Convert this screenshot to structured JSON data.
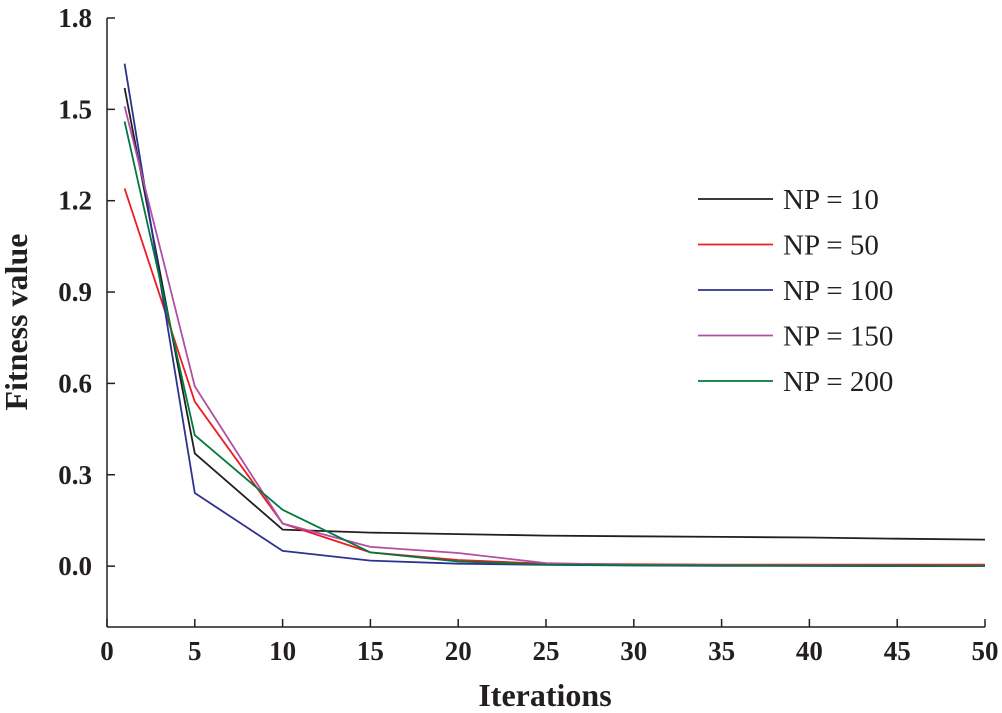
{
  "chart_data": {
    "type": "line",
    "title": "",
    "xlabel": "Iterations",
    "ylabel": "Fitness value",
    "xlim": [
      0,
      50
    ],
    "ylim": [
      -0.2,
      1.8
    ],
    "xticks": [
      0,
      5,
      10,
      15,
      20,
      25,
      30,
      35,
      40,
      45,
      50
    ],
    "xtick_labels": [
      "0",
      "5",
      "10",
      "15",
      "20",
      "25",
      "30",
      "35",
      "40",
      "45",
      "50"
    ],
    "yticks": [
      0.0,
      0.3,
      0.6,
      0.9,
      1.2,
      1.5,
      1.8
    ],
    "ytick_labels": [
      "0.0",
      "0.3",
      "0.6",
      "0.9",
      "1.2",
      "1.5",
      "1.8"
    ],
    "grid": false,
    "legend_position": "right",
    "series": [
      {
        "name": "NP = 10",
        "color": "#231f20",
        "x": [
          1,
          5,
          10,
          15,
          20,
          25,
          30,
          35,
          40,
          45,
          50
        ],
        "y": [
          1.57,
          0.37,
          0.12,
          0.11,
          0.105,
          0.1,
          0.098,
          0.096,
          0.094,
          0.09,
          0.087
        ]
      },
      {
        "name": "NP = 50",
        "color": "#ed1c24",
        "x": [
          1,
          5,
          10,
          15,
          20,
          25,
          30,
          35,
          40,
          45,
          50
        ],
        "y": [
          1.24,
          0.54,
          0.14,
          0.045,
          0.02,
          0.008,
          0.006,
          0.005,
          0.005,
          0.005,
          0.005
        ]
      },
      {
        "name": "NP = 100",
        "color": "#2e3192",
        "x": [
          1,
          5,
          10,
          15,
          20,
          25,
          30,
          35,
          40,
          45,
          50
        ],
        "y": [
          1.65,
          0.24,
          0.05,
          0.018,
          0.008,
          0.004,
          0.002,
          0.001,
          0.001,
          0.0,
          0.0
        ]
      },
      {
        "name": "NP = 150",
        "color": "#b150a5",
        "x": [
          1,
          5,
          10,
          15,
          20,
          25,
          30,
          35,
          40,
          45,
          50
        ],
        "y": [
          1.51,
          0.59,
          0.14,
          0.063,
          0.043,
          0.01,
          0.004,
          0.003,
          0.002,
          0.001,
          0.001
        ]
      },
      {
        "name": "NP = 200",
        "color": "#00793f",
        "x": [
          1,
          5,
          10,
          15,
          20,
          25,
          30,
          35,
          40,
          45,
          50
        ],
        "y": [
          1.46,
          0.43,
          0.185,
          0.045,
          0.015,
          0.005,
          0.003,
          0.002,
          0.001,
          0.001,
          0.0
        ]
      }
    ]
  }
}
